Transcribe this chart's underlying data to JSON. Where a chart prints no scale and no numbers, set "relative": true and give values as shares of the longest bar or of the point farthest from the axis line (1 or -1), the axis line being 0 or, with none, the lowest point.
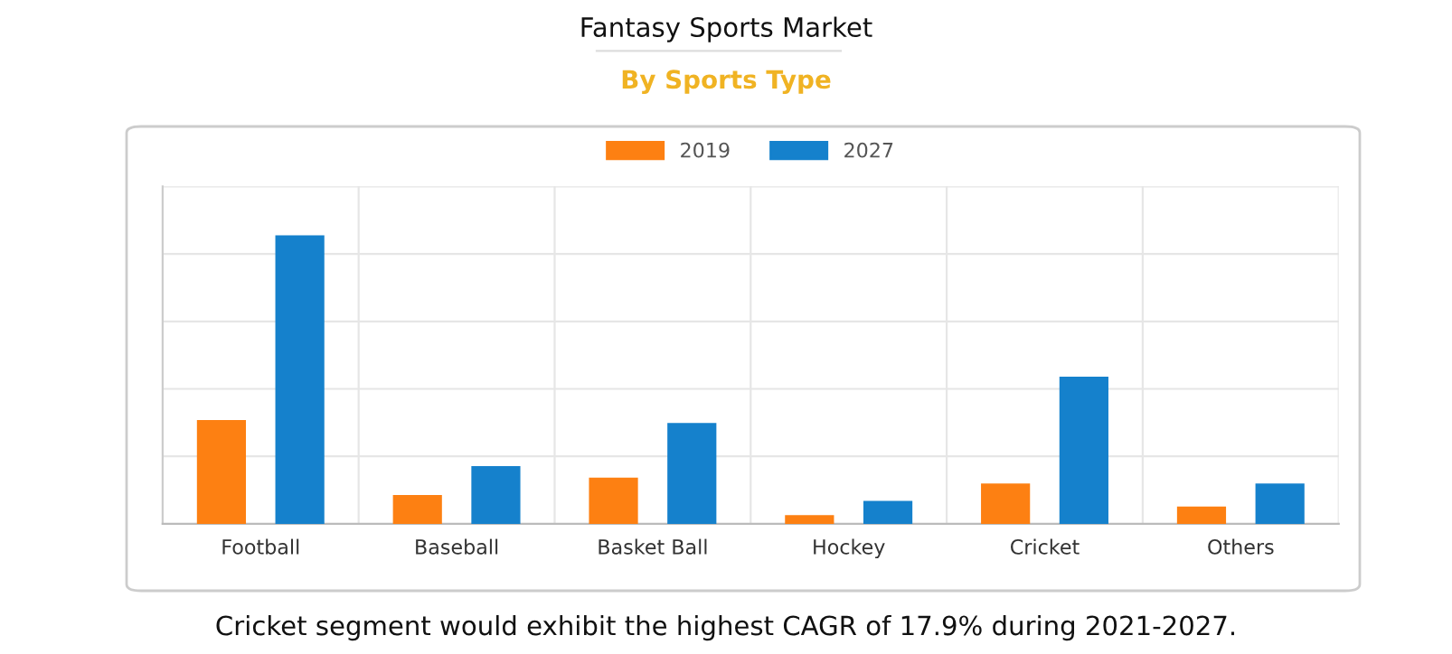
{
  "chart_data": {
    "type": "bar",
    "title": "Fantasy Sports Market",
    "subtitle": "By Sports Type",
    "relative": true,
    "grid": true,
    "legend": "top",
    "categories": [
      "Football",
      "Baseball",
      "Basket Ball",
      "Hockey",
      "Cricket",
      "Others"
    ],
    "series": [
      {
        "name": "2019",
        "color": "#fd8012",
        "values": [
          0.36,
          0.1,
          0.16,
          0.03,
          0.14,
          0.06
        ]
      },
      {
        "name": "2027",
        "color": "#1581cc",
        "values": [
          1,
          0.2,
          0.35,
          0.08,
          0.51,
          0.14
        ]
      }
    ],
    "annotations": [
      "Cricket segment would exhibit the highest CAGR of 17.9% during 2021-2027."
    ]
  }
}
